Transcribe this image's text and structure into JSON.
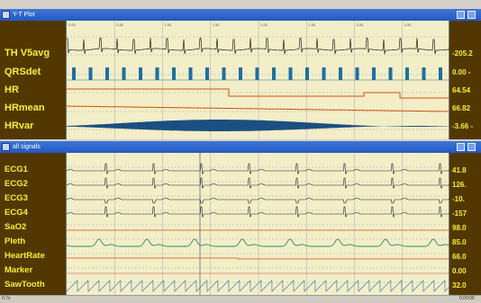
{
  "colors": {
    "panel": "#523800",
    "label": "#f7ef32",
    "plot_bg": "#f2eec8",
    "grid": "#999999",
    "waveform": "#202020",
    "qrs": "#1e6fa0",
    "hr": "#d05010",
    "pleth": "#2e8870",
    "saw": "#4a7fb0",
    "marker": "#d04040",
    "titlebar": "#2459c4"
  },
  "window1": {
    "title": "Y-T Plot",
    "icons": {
      "app": "app-icon",
      "min": "minimize-icon",
      "close": "close-icon"
    },
    "channels": [
      {
        "label": "TH V5avg",
        "value": "-205.2"
      },
      {
        "label": "QRSdet",
        "value": "0.00 -"
      },
      {
        "label": "HR",
        "value": "64.54"
      },
      {
        "label": "HRmean",
        "value": "66.82"
      },
      {
        "label": "HRvar",
        "value": "-3.66 -"
      }
    ],
    "time_ticks": [
      "0.00",
      "0.50",
      "1.00",
      "1.50",
      "2.00",
      "2.50",
      "3.00",
      "3.50"
    ]
  },
  "window2": {
    "title": "all signals",
    "icons": {
      "app": "app-icon",
      "min": "minimize-icon",
      "close": "close-icon"
    },
    "channels": [
      {
        "label": "ECG1",
        "value": "41.8"
      },
      {
        "label": "ECG2",
        "value": "126."
      },
      {
        "label": "ECG3",
        "value": "-10."
      },
      {
        "label": "ECG4",
        "value": "-157"
      },
      {
        "label": "SaO2",
        "value": "98.0"
      },
      {
        "label": "Pleth",
        "value": "85.0"
      },
      {
        "label": "HeartRate",
        "value": "66.0"
      },
      {
        "label": "Marker",
        "value": "0.00"
      },
      {
        "label": "SawTooth",
        "value": "32.0"
      }
    ],
    "scroll_left": "0.7s",
    "scroll_right": "0.00:00"
  }
}
